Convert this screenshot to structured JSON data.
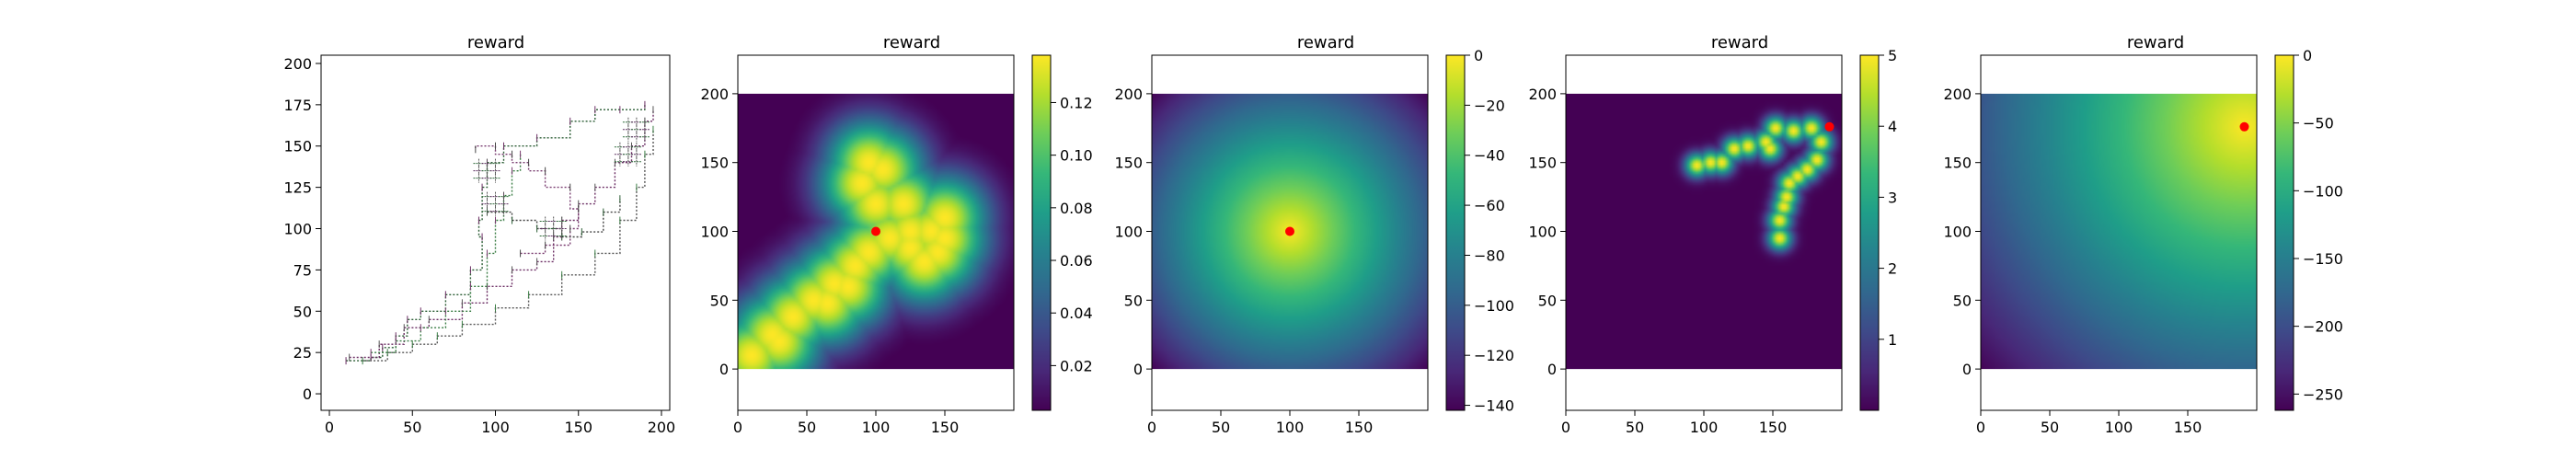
{
  "figure": {
    "colors": {
      "marker": "#ff0000",
      "frame": "#000000"
    },
    "panels": [
      {
        "title": "reward"
      },
      {
        "title": "reward"
      },
      {
        "title": "reward"
      },
      {
        "title": "reward"
      },
      {
        "title": "reward"
      }
    ]
  },
  "chart_data": [
    {
      "type": "scatter",
      "title": "reward",
      "xlabel": "",
      "ylabel": "",
      "xlim": [
        -5,
        205
      ],
      "ylim": [
        -10,
        205
      ],
      "x_ticks": [
        "0",
        "50",
        "100",
        "150",
        "200"
      ],
      "y_ticks": [
        "0",
        "25",
        "50",
        "75",
        "100",
        "125",
        "150",
        "175",
        "200"
      ],
      "description_note": "sparse dashed trajectory segments",
      "paths": [
        [
          [
            10,
            20
          ],
          [
            25,
            22
          ],
          [
            32,
            28
          ],
          [
            40,
            35
          ],
          [
            47,
            45
          ],
          [
            55,
            50
          ],
          [
            70,
            60
          ],
          [
            85,
            75
          ],
          [
            92,
            95
          ],
          [
            90,
            105
          ],
          [
            92,
            125
          ],
          [
            95,
            140
          ],
          [
            105,
            150
          ],
          [
            125,
            155
          ],
          [
            145,
            165
          ],
          [
            160,
            172
          ],
          [
            175,
            172
          ],
          [
            190,
            175
          ]
        ],
        [
          [
            12,
            22
          ],
          [
            30,
            30
          ],
          [
            45,
            40
          ],
          [
            60,
            45
          ],
          [
            80,
            55
          ],
          [
            95,
            65
          ],
          [
            110,
            75
          ],
          [
            125,
            80
          ],
          [
            135,
            95
          ],
          [
            140,
            105
          ],
          [
            150,
            115
          ],
          [
            160,
            125
          ],
          [
            172,
            140
          ],
          [
            182,
            150
          ],
          [
            190,
            165
          ],
          [
            195,
            172
          ]
        ],
        [
          [
            20,
            20
          ],
          [
            35,
            25
          ],
          [
            50,
            30
          ],
          [
            65,
            35
          ],
          [
            80,
            42
          ],
          [
            100,
            52
          ],
          [
            120,
            60
          ],
          [
            140,
            72
          ],
          [
            160,
            85
          ],
          [
            175,
            105
          ],
          [
            185,
            125
          ],
          [
            190,
            145
          ],
          [
            195,
            160
          ]
        ],
        [
          [
            25,
            25
          ],
          [
            40,
            32
          ],
          [
            55,
            40
          ],
          [
            70,
            50
          ],
          [
            85,
            65
          ],
          [
            95,
            85
          ],
          [
            100,
            105
          ],
          [
            105,
            120
          ],
          [
            110,
            135
          ],
          [
            115,
            145
          ]
        ],
        [
          [
            115,
            85
          ],
          [
            130,
            90
          ],
          [
            145,
            100
          ],
          [
            150,
            112
          ],
          [
            145,
            125
          ],
          [
            130,
            135
          ],
          [
            120,
            140
          ],
          [
            110,
            145
          ],
          [
            100,
            150
          ],
          [
            88,
            148
          ]
        ],
        [
          [
            95,
            110
          ],
          [
            110,
            105
          ],
          [
            125,
            100
          ],
          [
            140,
            95
          ],
          [
            152,
            98
          ],
          [
            165,
            110
          ],
          [
            175,
            118
          ]
        ]
      ],
      "clusters": [
        [
          135,
          100
        ],
        [
          100,
          115
        ],
        [
          95,
          135
        ],
        [
          185,
          160
        ],
        [
          180,
          145
        ]
      ]
    },
    {
      "type": "heatmap",
      "title": "reward",
      "xlim": [
        0,
        200
      ],
      "ylim": [
        -30,
        228
      ],
      "x_ticks": [
        "0",
        "50",
        "100",
        "150"
      ],
      "y_ticks": [
        "0",
        "50",
        "100",
        "150",
        "200"
      ],
      "colorbar": {
        "min": 0.003,
        "max": 0.138,
        "ticks": [
          0.02,
          0.04,
          0.06,
          0.08,
          0.1,
          0.12
        ],
        "tick_labels": [
          "0.02",
          "0.04",
          "0.06",
          "0.08",
          "0.10",
          "0.12"
        ]
      },
      "colormap": "viridis",
      "field": "gaussian_bumps",
      "sigma": 22,
      "amplitude": 0.138,
      "centers": [
        [
          10,
          10
        ],
        [
          25,
          25
        ],
        [
          40,
          38
        ],
        [
          55,
          50
        ],
        [
          70,
          62
        ],
        [
          85,
          75
        ],
        [
          95,
          85
        ],
        [
          110,
          95
        ],
        [
          125,
          100
        ],
        [
          140,
          100
        ],
        [
          150,
          95
        ],
        [
          145,
          85
        ],
        [
          135,
          78
        ],
        [
          100,
          120
        ],
        [
          90,
          135
        ],
        [
          95,
          150
        ],
        [
          105,
          145
        ],
        [
          120,
          120
        ],
        [
          150,
          110
        ],
        [
          125,
          88
        ],
        [
          80,
          60
        ],
        [
          65,
          48
        ],
        [
          30,
          20
        ]
      ],
      "marker": [
        100,
        100
      ]
    },
    {
      "type": "heatmap",
      "title": "reward",
      "xlim": [
        0,
        200
      ],
      "ylim": [
        -30,
        228
      ],
      "x_ticks": [
        "0",
        "50",
        "100",
        "150"
      ],
      "y_ticks": [
        "0",
        "50",
        "100",
        "150",
        "200"
      ],
      "colorbar": {
        "min": -142,
        "max": 0,
        "ticks": [
          0,
          -20,
          -40,
          -60,
          -80,
          -100,
          -120,
          -140
        ],
        "tick_labels": [
          "0",
          "−20",
          "−40",
          "−60",
          "−80",
          "−100",
          "−120",
          "−140"
        ]
      },
      "colormap": "viridis",
      "field": "negative_distance",
      "center": [
        100,
        100
      ],
      "marker": [
        100,
        100
      ]
    },
    {
      "type": "heatmap",
      "title": "reward",
      "xlim": [
        0,
        200
      ],
      "ylim": [
        -30,
        228
      ],
      "x_ticks": [
        "0",
        "50",
        "100",
        "150"
      ],
      "y_ticks": [
        "0",
        "50",
        "100",
        "150",
        "200"
      ],
      "colorbar": {
        "min": 0,
        "max": 5,
        "ticks": [
          1,
          2,
          3,
          4,
          5
        ],
        "tick_labels": [
          "1",
          "2",
          "3",
          "4",
          "5"
        ]
      },
      "colormap": "viridis",
      "field": "gaussian_bumps",
      "sigma": 6,
      "amplitude": 5,
      "centers": [
        [
          95,
          148
        ],
        [
          105,
          150
        ],
        [
          113,
          150
        ],
        [
          122,
          160
        ],
        [
          132,
          162
        ],
        [
          145,
          165
        ],
        [
          152,
          175
        ],
        [
          165,
          173
        ],
        [
          178,
          175
        ],
        [
          185,
          165
        ],
        [
          182,
          152
        ],
        [
          175,
          145
        ],
        [
          168,
          140
        ],
        [
          162,
          135
        ],
        [
          160,
          125
        ],
        [
          158,
          118
        ],
        [
          155,
          108
        ],
        [
          155,
          95
        ],
        [
          148,
          160
        ]
      ],
      "marker": [
        191,
        176
      ]
    },
    {
      "type": "heatmap",
      "title": "reward",
      "xlim": [
        0,
        200
      ],
      "ylim": [
        -30,
        228
      ],
      "x_ticks": [
        "0",
        "50",
        "100",
        "150"
      ],
      "y_ticks": [
        "0",
        "50",
        "100",
        "150",
        "200"
      ],
      "colorbar": {
        "min": -262,
        "max": 0,
        "ticks": [
          0,
          -50,
          -100,
          -150,
          -200,
          -250
        ],
        "tick_labels": [
          "0",
          "−50",
          "−100",
          "−150",
          "−200",
          "−250"
        ]
      },
      "colormap": "viridis",
      "field": "negative_distance",
      "center": [
        191,
        176
      ],
      "marker": [
        191,
        176
      ]
    }
  ]
}
